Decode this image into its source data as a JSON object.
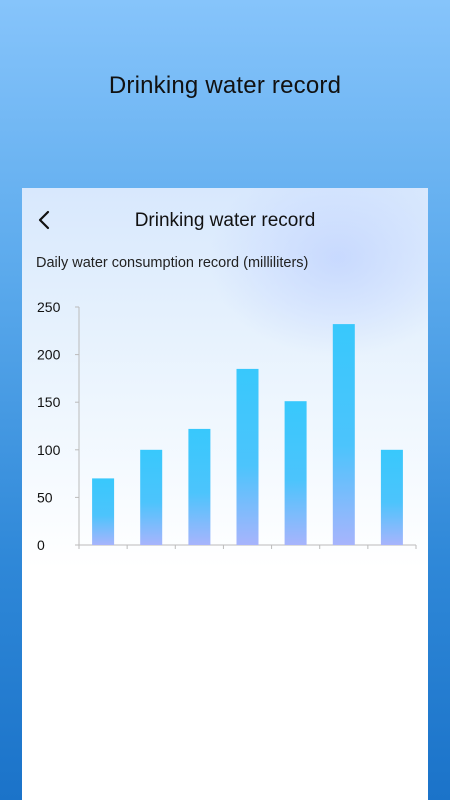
{
  "banner": {
    "title": "Drinking water record"
  },
  "header": {
    "back_icon": "chevron-left-icon",
    "title": "Drinking water record"
  },
  "subtitle": "Daily water consumption record (milliliters)",
  "colors": {
    "bar_top": "#38c8fc",
    "bar_bottom": "#a7b4fc",
    "axis": "#bbbbbb"
  },
  "chart_data": {
    "type": "bar",
    "title": "",
    "xlabel": "",
    "ylabel": "",
    "categories": [
      "",
      "",
      "",
      "",
      "",
      "",
      ""
    ],
    "values": [
      70,
      100,
      122,
      185,
      151,
      232,
      100
    ],
    "ylim": [
      0,
      250
    ],
    "yticks": [
      0,
      50,
      100,
      150,
      200,
      250
    ],
    "grid": false
  }
}
